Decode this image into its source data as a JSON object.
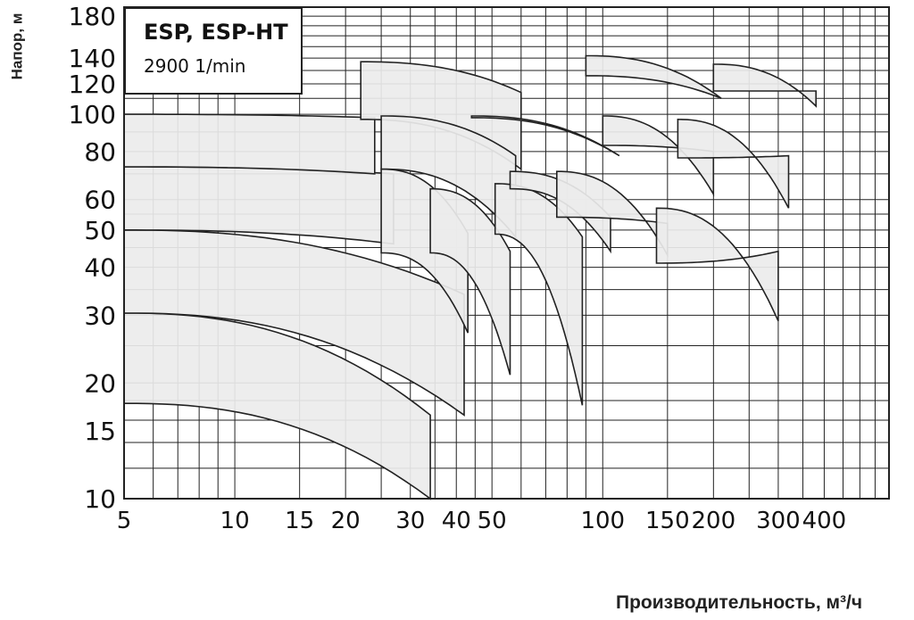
{
  "chart_data": {
    "type": "area",
    "title": "ESP, ESP-HT",
    "subtitle": "2900 1/min",
    "xlabel": "Производительность, м³/ч",
    "ylabel": "Напор, м",
    "x_scale": "log",
    "y_scale": "log",
    "xlim": [
      5,
      600
    ],
    "ylim": [
      10,
      190
    ],
    "x_ticks": [
      5,
      10,
      15,
      20,
      30,
      40,
      50,
      100,
      150,
      200,
      300,
      400
    ],
    "x_tick_labels": [
      "5",
      "10",
      "15",
      "20",
      "30",
      "40",
      "50",
      "100",
      "150",
      "200",
      "300",
      "400"
    ],
    "y_ticks": [
      10,
      15,
      20,
      30,
      40,
      50,
      60,
      80,
      100,
      120,
      140,
      180
    ],
    "y_tick_labels": [
      "10",
      "15",
      "20",
      "30",
      "40",
      "50",
      "60",
      "80",
      "100",
      "120",
      "140",
      "180"
    ],
    "grid": true,
    "series": [
      {
        "id": "z1",
        "Q": [
          5,
          34
        ],
        "H": [
          [
            17.7,
            10
          ],
          [
            30.4,
            16.5
          ]
        ]
      },
      {
        "id": "z2",
        "Q": [
          5,
          42
        ],
        "H": [
          [
            30.4,
            16.5
          ],
          [
            50,
            34
          ]
        ]
      },
      {
        "id": "z3",
        "Q": [
          5,
          27
        ],
        "H": [
          [
            50,
            46
          ],
          [
            73,
            70
          ]
        ]
      },
      {
        "id": "z4",
        "Q": [
          5,
          24
        ],
        "H": [
          [
            73,
            70
          ],
          [
            100,
            98
          ]
        ]
      },
      {
        "id": "z5",
        "Q": [
          25,
          43
        ],
        "H": [
          [
            43.6,
            27
          ],
          [
            72,
            49
          ]
        ]
      },
      {
        "id": "z6",
        "Q": [
          34,
          56
        ],
        "H": [
          [
            43.6,
            21
          ],
          [
            64,
            44
          ]
        ]
      },
      {
        "id": "z7",
        "Q": [
          22,
          60
        ],
        "H": [
          [
            97,
            72
          ],
          [
            137,
            114
          ]
        ]
      },
      {
        "id": "z8",
        "Q": [
          25,
          58
        ],
        "H": [
          [
            72,
            48
          ],
          [
            99,
            78
          ]
        ]
      },
      {
        "id": "z9",
        "Q": [
          51,
          88
        ],
        "H": [
          [
            48.8,
            17.5
          ],
          [
            66,
            48
          ]
        ]
      },
      {
        "id": "z10",
        "Q": [
          56,
          105
        ],
        "H": [
          [
            64,
            44
          ],
          [
            71,
            54
          ]
        ]
      },
      {
        "id": "z11",
        "Q": [
          44,
          111
        ],
        "H": [
          [
            99,
            78
          ],
          [
            98,
            78
          ]
        ]
      },
      {
        "id": "z12",
        "Q": [
          75,
          150
        ],
        "H": [
          [
            71,
            43
          ],
          [
            54,
            52
          ]
        ]
      },
      {
        "id": "z13",
        "Q": [
          100,
          200
        ],
        "H": [
          [
            99,
            62
          ],
          [
            83,
            80
          ]
        ]
      },
      {
        "id": "z14",
        "Q": [
          90,
          210
        ],
        "H": [
          [
            142,
            110
          ],
          [
            126,
            110
          ]
        ]
      },
      {
        "id": "z15",
        "Q": [
          140,
          300
        ],
        "H": [
          [
            57,
            29
          ],
          [
            41,
            44
          ]
        ]
      },
      {
        "id": "z16",
        "Q": [
          160,
          320
        ],
        "H": [
          [
            97,
            57
          ],
          [
            77,
            78
          ]
        ]
      },
      {
        "id": "z17",
        "Q": [
          200,
          380
        ],
        "H": [
          [
            135,
            105
          ],
          [
            115,
            115
          ]
        ]
      }
    ]
  }
}
